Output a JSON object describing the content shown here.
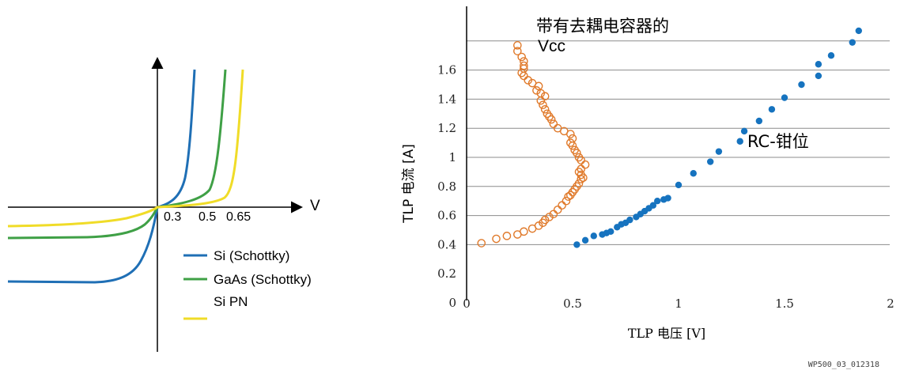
{
  "colors": {
    "si_schottky": "#1f6fb5",
    "gaas_schottky": "#3fa046",
    "si_pn": "#f0dc28",
    "rc_clamp": "#1673bf",
    "vcc_decap": "#e07a2b",
    "axis": "#000000",
    "grid": "#8c8c8c"
  },
  "footer_id": "WP500_03_012318",
  "chart_data": [
    {
      "type": "line",
      "x_axis_label": "V",
      "x_ticks": [
        "0.3",
        "0.5",
        "0.65"
      ],
      "legend": {
        "placement": "bottom-right",
        "entries": [
          "Si (Schottky)",
          "GaAs (Schottky)",
          "Si PN"
        ]
      },
      "series": [
        {
          "name": "Si (Schottky)",
          "color_key": "si_schottky",
          "turn_on_v": 0.3
        },
        {
          "name": "GaAs (Schottky)",
          "color_key": "gaas_schottky",
          "turn_on_v": 0.5
        },
        {
          "name": "Si PN",
          "color_key": "si_pn",
          "turn_on_v": 0.65
        }
      ]
    },
    {
      "type": "scatter",
      "xlabel": "TLP 电压 [V]",
      "ylabel": "TLP 电流 [A]",
      "xlim": [
        0,
        2
      ],
      "ylim": [
        0,
        1.8
      ],
      "x_ticks": [
        "0",
        "0.5",
        "1",
        "1.5",
        "2"
      ],
      "y_ticks": [
        "0.2",
        "0.4",
        "0.6",
        "0.8",
        "1",
        "1.2",
        "1.4",
        "1.6"
      ],
      "y_origin_label": "0",
      "grid": "horizontal",
      "annotations": [
        {
          "text": "带有去耦电容器的",
          "series": "vcc"
        },
        {
          "text": "Vcc",
          "series": "vcc"
        },
        {
          "text": "RC-钳位",
          "series": "rc"
        }
      ],
      "series": [
        {
          "id": "vcc",
          "marker": "open-circle",
          "color_key": "vcc_decap",
          "points": [
            [
              0.07,
              0.41
            ],
            [
              0.14,
              0.44
            ],
            [
              0.19,
              0.46
            ],
            [
              0.24,
              0.47
            ],
            [
              0.27,
              0.49
            ],
            [
              0.31,
              0.51
            ],
            [
              0.34,
              0.53
            ],
            [
              0.36,
              0.55
            ],
            [
              0.37,
              0.57
            ],
            [
              0.39,
              0.59
            ],
            [
              0.41,
              0.61
            ],
            [
              0.43,
              0.64
            ],
            [
              0.45,
              0.67
            ],
            [
              0.47,
              0.7
            ],
            [
              0.48,
              0.73
            ],
            [
              0.49,
              0.74
            ],
            [
              0.5,
              0.76
            ],
            [
              0.51,
              0.78
            ],
            [
              0.52,
              0.8
            ],
            [
              0.53,
              0.82
            ],
            [
              0.54,
              0.85
            ],
            [
              0.55,
              0.86
            ],
            [
              0.54,
              0.88
            ],
            [
              0.53,
              0.9
            ],
            [
              0.54,
              0.92
            ],
            [
              0.56,
              0.95
            ],
            [
              0.54,
              0.98
            ],
            [
              0.53,
              1.0
            ],
            [
              0.52,
              1.03
            ],
            [
              0.51,
              1.05
            ],
            [
              0.5,
              1.08
            ],
            [
              0.49,
              1.1
            ],
            [
              0.5,
              1.13
            ],
            [
              0.49,
              1.16
            ],
            [
              0.46,
              1.18
            ],
            [
              0.43,
              1.2
            ],
            [
              0.41,
              1.23
            ],
            [
              0.4,
              1.26
            ],
            [
              0.39,
              1.28
            ],
            [
              0.38,
              1.3
            ],
            [
              0.37,
              1.33
            ],
            [
              0.36,
              1.36
            ],
            [
              0.35,
              1.39
            ],
            [
              0.37,
              1.42
            ],
            [
              0.35,
              1.44
            ],
            [
              0.33,
              1.46
            ],
            [
              0.34,
              1.49
            ],
            [
              0.31,
              1.51
            ],
            [
              0.29,
              1.53
            ],
            [
              0.27,
              1.56
            ],
            [
              0.26,
              1.58
            ],
            [
              0.27,
              1.61
            ],
            [
              0.27,
              1.63
            ],
            [
              0.27,
              1.66
            ],
            [
              0.26,
              1.69
            ],
            [
              0.24,
              1.73
            ],
            [
              0.24,
              1.77
            ]
          ]
        },
        {
          "id": "rc",
          "marker": "filled-circle",
          "color_key": "rc_clamp",
          "points": [
            [
              0.52,
              0.4
            ],
            [
              0.56,
              0.43
            ],
            [
              0.6,
              0.46
            ],
            [
              0.64,
              0.47
            ],
            [
              0.66,
              0.48
            ],
            [
              0.68,
              0.49
            ],
            [
              0.71,
              0.52
            ],
            [
              0.73,
              0.54
            ],
            [
              0.75,
              0.55
            ],
            [
              0.77,
              0.57
            ],
            [
              0.8,
              0.59
            ],
            [
              0.82,
              0.61
            ],
            [
              0.84,
              0.63
            ],
            [
              0.86,
              0.65
            ],
            [
              0.88,
              0.67
            ],
            [
              0.9,
              0.7
            ],
            [
              0.93,
              0.71
            ],
            [
              0.95,
              0.72
            ],
            [
              1.0,
              0.81
            ],
            [
              1.07,
              0.89
            ],
            [
              1.15,
              0.97
            ],
            [
              1.19,
              1.04
            ],
            [
              1.29,
              1.11
            ],
            [
              1.31,
              1.18
            ],
            [
              1.38,
              1.25
            ],
            [
              1.44,
              1.33
            ],
            [
              1.5,
              1.41
            ],
            [
              1.58,
              1.5
            ],
            [
              1.66,
              1.56
            ],
            [
              1.66,
              1.64
            ],
            [
              1.72,
              1.7
            ],
            [
              1.82,
              1.79
            ],
            [
              1.85,
              1.87
            ]
          ]
        }
      ]
    }
  ]
}
